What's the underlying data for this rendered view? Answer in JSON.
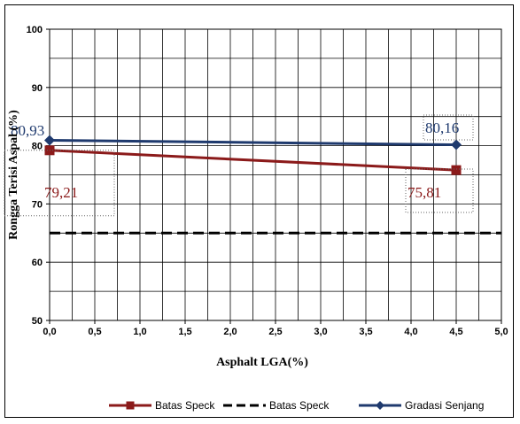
{
  "chart_data": {
    "type": "line",
    "title": "",
    "xlabel": "Asphalt LGA(%)",
    "ylabel": "Rongga Terisi Aspal (%)",
    "xlim": [
      0,
      5
    ],
    "ylim": [
      50,
      100
    ],
    "x_ticks": [
      "0,0",
      "0,5",
      "1,0",
      "1,5",
      "2,0",
      "2,5",
      "3,0",
      "3,5",
      "4,0",
      "4,5",
      "5,0"
    ],
    "y_ticks": [
      "50",
      "60",
      "70",
      "80",
      "90",
      "100"
    ],
    "grid": true,
    "legend_position": "bottom",
    "series": [
      {
        "name": "Batas Speck",
        "color": "#8b1a1a",
        "style": "solid-square",
        "points": [
          {
            "x": 0.0,
            "y": 79.21,
            "label": "79,21"
          },
          {
            "x": 4.5,
            "y": 75.81,
            "label": "75,81"
          }
        ]
      },
      {
        "name": "Batas Speck",
        "color": "#000000",
        "style": "dashed",
        "points": [
          {
            "x": 0.0,
            "y": 65.0,
            "label": ""
          },
          {
            "x": 5.0,
            "y": 65.0,
            "label": ""
          }
        ]
      },
      {
        "name": "Gradasi Senjang",
        "color": "#1f3a6e",
        "style": "solid-diamond",
        "points": [
          {
            "x": 0.0,
            "y": 80.93,
            "label": "80,93"
          },
          {
            "x": 4.5,
            "y": 80.16,
            "label": "80,16"
          }
        ]
      }
    ]
  }
}
